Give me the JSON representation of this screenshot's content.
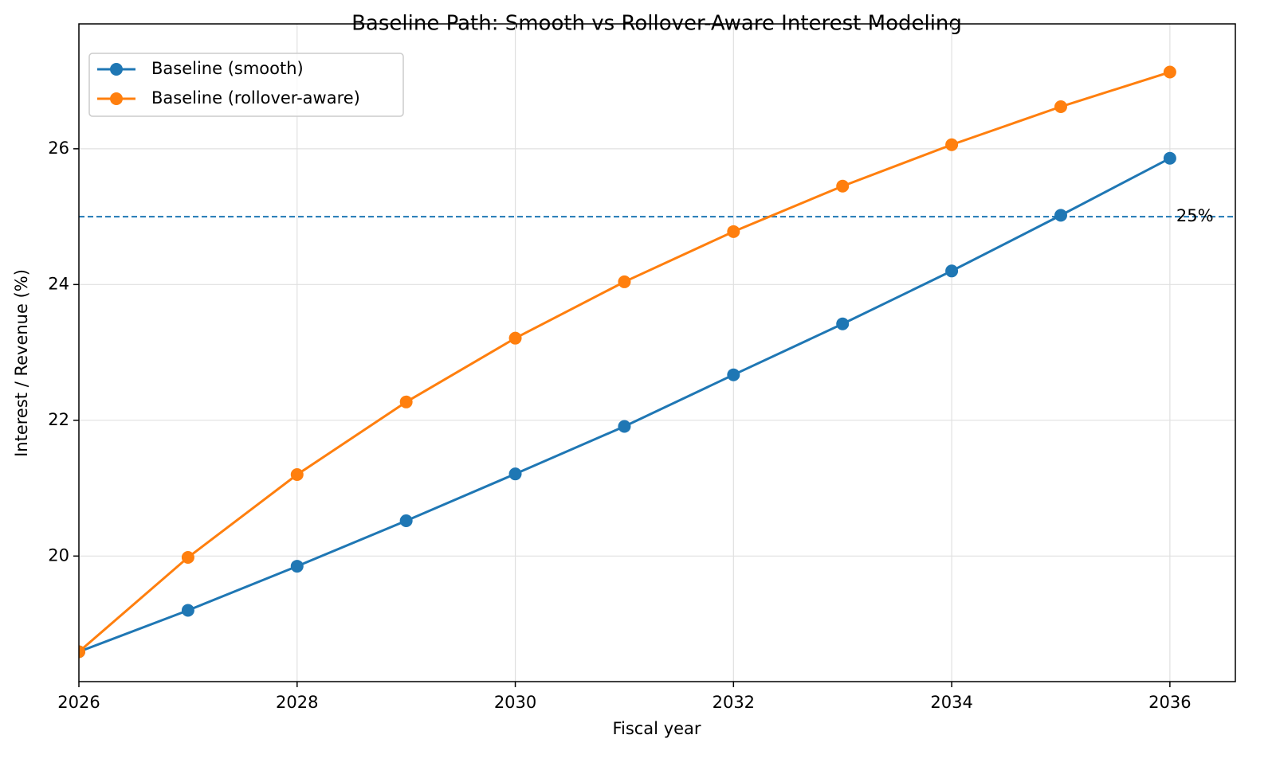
{
  "chart_data": {
    "type": "line",
    "title": "Baseline Path: Smooth vs Rollover-Aware Interest Modeling",
    "xlabel": "Fiscal year",
    "ylabel": "Interest / Revenue (%)",
    "x": [
      2026,
      2027,
      2028,
      2029,
      2030,
      2031,
      2032,
      2033,
      2034,
      2035,
      2036
    ],
    "series": [
      {
        "name": "Baseline (smooth)",
        "color": "#1f77b4",
        "values": [
          18.59,
          19.2,
          19.85,
          20.52,
          21.21,
          21.91,
          22.67,
          23.42,
          24.2,
          25.02,
          25.86
        ]
      },
      {
        "name": "Baseline (rollover-aware)",
        "color": "#ff7f0e",
        "values": [
          18.59,
          19.98,
          21.2,
          22.27,
          23.21,
          24.04,
          24.78,
          25.45,
          26.06,
          26.62,
          27.13
        ]
      }
    ],
    "reference_line": {
      "value": 25,
      "label": "25%",
      "color": "#1f77b4"
    },
    "xlim": [
      2026,
      2036.6
    ],
    "ylim": [
      18.15,
      27.84
    ],
    "xticks": [
      2026,
      2028,
      2030,
      2032,
      2034,
      2036
    ],
    "yticks": [
      20,
      22,
      24,
      26
    ],
    "grid": true,
    "legend": "upper left"
  }
}
